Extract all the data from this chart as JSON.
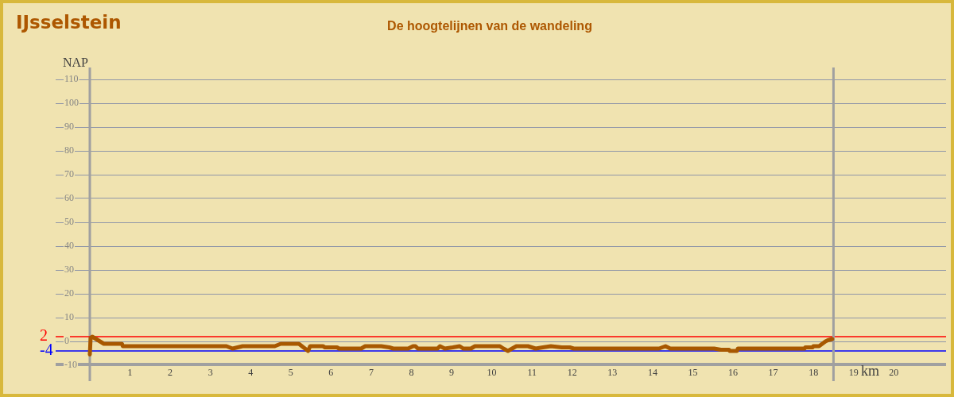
{
  "chart_data": {
    "type": "line",
    "title": "IJsselstein",
    "subtitle": "De hoogtelijnen van de wandeling",
    "xlabel": "km",
    "ylabel": "NAP",
    "xlim": [
      -0.85,
      21.3
    ],
    "xticks": [
      1,
      2,
      3,
      4,
      5,
      6,
      7,
      8,
      9,
      10,
      11,
      12,
      13,
      14,
      15,
      16,
      17,
      18,
      19,
      20
    ],
    "ylim": [
      -10,
      115
    ],
    "yticks": [
      -10,
      0,
      10,
      20,
      30,
      40,
      50,
      60,
      70,
      80,
      90,
      100,
      110
    ],
    "grid": "y",
    "marker": "none",
    "line_style": "solid",
    "ref_lines": [
      {
        "axis": "y",
        "value": 2,
        "label": "2",
        "color": "#ff0000"
      },
      {
        "axis": "y",
        "value": -4,
        "label": "-4",
        "color": "#0000ff"
      },
      {
        "axis": "x",
        "value": 18.5,
        "color": "#a0a0a0"
      }
    ],
    "x": [
      0,
      0.02,
      0.06,
      0.35,
      0.8,
      0.82,
      3.4,
      3.55,
      3.8,
      4.6,
      4.75,
      5.2,
      5.43,
      5.48,
      5.8,
      5.85,
      6.15,
      6.2,
      6.75,
      6.85,
      7.25,
      7.45,
      7.55,
      7.92,
      8.04,
      8.1,
      8.16,
      8.65,
      8.71,
      8.83,
      9.03,
      9.2,
      9.29,
      9.48,
      9.58,
      10.2,
      10.29,
      10.4,
      10.61,
      10.9,
      11.09,
      11.27,
      11.47,
      11.74,
      11.94,
      12.04,
      14.16,
      14.32,
      14.44,
      15.53,
      15.7,
      15.9,
      15.92,
      16.1,
      16.12,
      17.78,
      17.8,
      17.98,
      18.0,
      18.14,
      18.3,
      18.36,
      18.47
    ],
    "series": [
      {
        "color": "#a85800",
        "values": [
          -5.5,
          1.5,
          2,
          -1,
          -1,
          -2,
          -2,
          -3,
          -2,
          -2,
          -1,
          -1,
          -4,
          -2,
          -2,
          -2.5,
          -2.5,
          -3,
          -3,
          -2,
          -2,
          -2.5,
          -3,
          -3,
          -2,
          -2,
          -3,
          -3,
          -2,
          -3,
          -2.5,
          -2,
          -3,
          -3,
          -2,
          -2,
          -3,
          -4,
          -2,
          -2,
          -3,
          -2.5,
          -2,
          -2.5,
          -2.5,
          -3,
          -3,
          -2,
          -3,
          -3,
          -3.5,
          -3.5,
          -4,
          -4,
          -3,
          -3,
          -2.5,
          -2.5,
          -2,
          -2,
          0,
          0.5,
          1
        ]
      }
    ]
  }
}
